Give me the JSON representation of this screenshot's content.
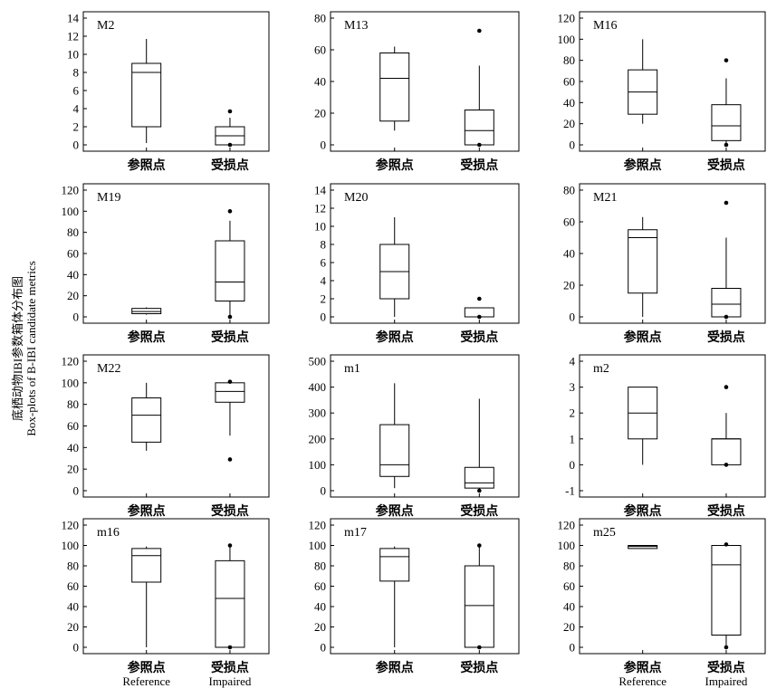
{
  "y_axis_title": {
    "line1": "底栖动物IBI参数箱体分布图",
    "line2": "Box-plots of B-IBI candidate metrics"
  },
  "chart_data": {
    "type": "boxplot",
    "categories": [
      "参照点",
      "受损点"
    ],
    "categories_en": [
      "Reference",
      "Impaired"
    ],
    "panels": [
      {
        "label": "M2",
        "ylim": [
          0,
          14
        ],
        "ticks": [
          0,
          2,
          4,
          6,
          8,
          10,
          12,
          14
        ],
        "boxes": [
          {
            "whislo": 0.2,
            "q1": 2,
            "med": 8,
            "q3": 9,
            "whishi": 11.7,
            "fliers": []
          },
          {
            "whislo": 0,
            "q1": 0,
            "med": 1,
            "q3": 2,
            "whishi": 3,
            "fliers": [
              0,
              3.7
            ]
          }
        ]
      },
      {
        "label": "M13",
        "ylim": [
          0,
          80
        ],
        "ticks": [
          0,
          20,
          40,
          60,
          80
        ],
        "boxes": [
          {
            "whislo": 9,
            "q1": 15,
            "med": 42,
            "q3": 58,
            "whishi": 62,
            "fliers": []
          },
          {
            "whislo": 0,
            "q1": 0,
            "med": 9,
            "q3": 22,
            "whishi": 50,
            "fliers": [
              0,
              72
            ]
          }
        ]
      },
      {
        "label": "M16",
        "ylim": [
          0,
          120
        ],
        "ticks": [
          0,
          20,
          40,
          60,
          80,
          100,
          120
        ],
        "boxes": [
          {
            "whislo": 20,
            "q1": 29,
            "med": 50,
            "q3": 71,
            "whishi": 100,
            "fliers": []
          },
          {
            "whislo": 0,
            "q1": 4,
            "med": 18,
            "q3": 38,
            "whishi": 63,
            "fliers": [
              0,
              80
            ]
          }
        ]
      },
      {
        "label": "M19",
        "ylim": [
          0,
          120
        ],
        "ticks": [
          0,
          20,
          40,
          60,
          80,
          100,
          120
        ],
        "boxes": [
          {
            "whislo": 2,
            "q1": 3,
            "med": 5,
            "q3": 8,
            "whishi": 9,
            "fliers": []
          },
          {
            "whislo": 0,
            "q1": 15,
            "med": 33,
            "q3": 72,
            "whishi": 91,
            "fliers": [
              0,
              100
            ]
          }
        ]
      },
      {
        "label": "M20",
        "ylim": [
          0,
          14
        ],
        "ticks": [
          0,
          2,
          4,
          6,
          8,
          10,
          12,
          14
        ],
        "boxes": [
          {
            "whislo": 0,
            "q1": 2,
            "med": 5,
            "q3": 8,
            "whishi": 11,
            "fliers": []
          },
          {
            "whislo": 0,
            "q1": 0,
            "med": 0,
            "q3": 1,
            "whishi": 1,
            "fliers": [
              0,
              2
            ]
          }
        ]
      },
      {
        "label": "M21",
        "ylim": [
          0,
          80
        ],
        "ticks": [
          0,
          20,
          40,
          60,
          80
        ],
        "boxes": [
          {
            "whislo": 0,
            "q1": 15,
            "med": 50,
            "q3": 55,
            "whishi": 63,
            "fliers": []
          },
          {
            "whislo": 0,
            "q1": 0,
            "med": 8,
            "q3": 18,
            "whishi": 50,
            "fliers": [
              0,
              72
            ]
          }
        ]
      },
      {
        "label": "M22",
        "ylim": [
          0,
          120
        ],
        "ticks": [
          0,
          20,
          40,
          60,
          80,
          100,
          120
        ],
        "boxes": [
          {
            "whislo": 37,
            "q1": 45,
            "med": 70,
            "q3": 86,
            "whishi": 100,
            "fliers": []
          },
          {
            "whislo": 51,
            "q1": 82,
            "med": 92,
            "q3": 100,
            "whishi": 100,
            "fliers": [
              29,
              101
            ]
          }
        ]
      },
      {
        "label": "m1",
        "ylim": [
          0,
          500
        ],
        "ticks": [
          0,
          100,
          200,
          300,
          400,
          500
        ],
        "boxes": [
          {
            "whislo": 10,
            "q1": 55,
            "med": 100,
            "q3": 255,
            "whishi": 415,
            "fliers": []
          },
          {
            "whislo": 0,
            "q1": 10,
            "med": 30,
            "q3": 90,
            "whishi": 355,
            "fliers": [
              0
            ]
          }
        ]
      },
      {
        "label": "m2",
        "ylim": [
          -1,
          4
        ],
        "ticks": [
          -1,
          0,
          1,
          2,
          3,
          4
        ],
        "boxes": [
          {
            "whislo": 0,
            "q1": 1,
            "med": 2,
            "q3": 3,
            "whishi": 3,
            "fliers": []
          },
          {
            "whislo": 0,
            "q1": 0,
            "med": 1,
            "q3": 1,
            "whishi": 2,
            "fliers": [
              0,
              3
            ]
          }
        ]
      },
      {
        "label": "m16",
        "ylim": [
          0,
          120
        ],
        "ticks": [
          0,
          20,
          40,
          60,
          80,
          100,
          120
        ],
        "boxes": [
          {
            "whislo": 0,
            "q1": 64,
            "med": 90,
            "q3": 97,
            "whishi": 99,
            "fliers": []
          },
          {
            "whislo": 0,
            "q1": 0,
            "med": 48,
            "q3": 85,
            "whishi": 100,
            "fliers": [
              0,
              100
            ]
          }
        ]
      },
      {
        "label": "m17",
        "ylim": [
          0,
          120
        ],
        "ticks": [
          0,
          20,
          40,
          60,
          80,
          100,
          120
        ],
        "boxes": [
          {
            "whislo": 0,
            "q1": 65,
            "med": 89,
            "q3": 97,
            "whishi": 99,
            "fliers": []
          },
          {
            "whislo": 0,
            "q1": 0,
            "med": 41,
            "q3": 80,
            "whishi": 100,
            "fliers": [
              0,
              100
            ]
          }
        ]
      },
      {
        "label": "m25",
        "ylim": [
          0,
          120
        ],
        "ticks": [
          0,
          20,
          40,
          60,
          80,
          100,
          120
        ],
        "boxes": [
          {
            "whislo": 97,
            "q1": 97,
            "med": 99,
            "q3": 100,
            "whishi": 100,
            "fliers": []
          },
          {
            "whislo": 0,
            "q1": 12,
            "med": 81,
            "q3": 100,
            "whishi": 100,
            "fliers": [
              0,
              101
            ]
          }
        ]
      }
    ],
    "english_labels_on_panels": [
      "m16",
      "m25"
    ],
    "grid": false,
    "legend": "none"
  }
}
